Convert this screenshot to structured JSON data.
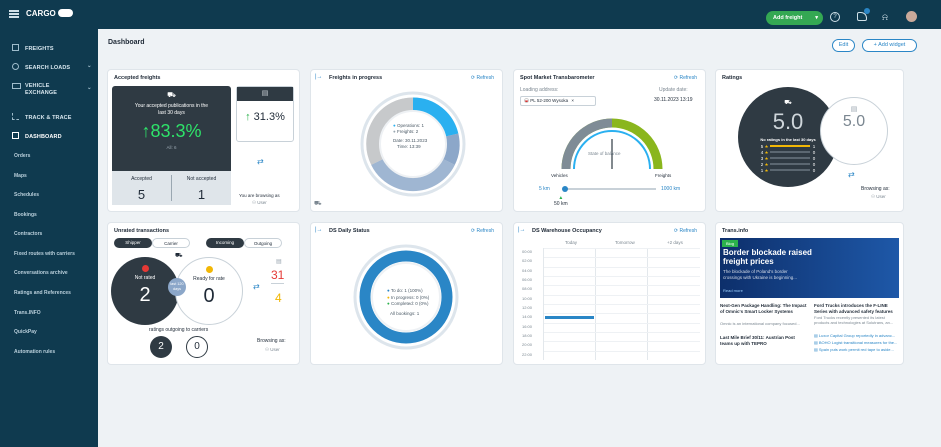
{
  "topbar": {
    "logo": "CARGO",
    "add_freight": "Add freight"
  },
  "sidebar": {
    "items": [
      "FREIGHTS",
      "SEARCH LOADS",
      "VEHICLE EXCHANGE",
      "TRACK & TRACE",
      "DASHBOARD"
    ],
    "vehicle_line1": "VEHICLE",
    "vehicle_line2": "EXCHANGE",
    "subitems": [
      "Orders",
      "Maps",
      "Schedules",
      "Bookings",
      "Contractors",
      "Fixed routes with carriers",
      "Conversations archive",
      "Ratings and References",
      "Trans.INFO",
      "QuickPay",
      "Automation rules"
    ]
  },
  "header": {
    "title": "Dashboard",
    "edit": "Edit",
    "add_widget": "Add widget"
  },
  "accepted": {
    "title": "Accepted freights",
    "desc1": "Your accepted publications in the",
    "desc2": "last 30 days",
    "percent": "83.3%",
    "all": "All: 6",
    "accepted_label": "Accepted",
    "not_accepted_label": "Not accepted",
    "accepted_val": "5",
    "not_accepted_val": "1",
    "side_percent": "31.3%",
    "browsing": "You are browsing as",
    "user": "User"
  },
  "progress": {
    "title": "Freights in progress",
    "refresh": "Refresh",
    "ops": "Operations: 1",
    "freights": "Freights: 2",
    "date": "Date: 30.11.2023",
    "time": "Time: 13:39"
  },
  "spot": {
    "title": "Spot Market Transbarometer",
    "refresh": "Refresh",
    "loading": "Loading address:",
    "update": "Update date:",
    "address": "PL 52-200 Wysoka",
    "date": "30.11.2023 13:19",
    "state": "State of balance",
    "vehicles": "Vehicles",
    "freights": "Freights",
    "min": "5 km",
    "max": "1000 km",
    "val": "50 km"
  },
  "ratings": {
    "title": "Ratings",
    "big": "5.0",
    "small": "5.0",
    "no_ratings": "No ratings in the last 30 days",
    "rows": [
      {
        "s": "5",
        "c": "1"
      },
      {
        "s": "4",
        "c": "0"
      },
      {
        "s": "3",
        "c": "0"
      },
      {
        "s": "2",
        "c": "0"
      },
      {
        "s": "1",
        "c": "0"
      }
    ],
    "browsing": "Browsing as:",
    "user": "User"
  },
  "unrated": {
    "title": "Unrated transactions",
    "shipper": "Shipper",
    "carrier": "Carrier",
    "incoming": "Incoming",
    "outgoing": "Outgoing",
    "not_rated": "Not rated",
    "not_rated_val": "2",
    "ready": "Ready for rate",
    "ready_val": "0",
    "last": "last 120 days",
    "cal_a": "31",
    "cal_b": "4",
    "outgoing_text": "ratings outgoing to carriers",
    "c1": "2",
    "c2": "0",
    "browsing": "Browsing as:",
    "user": "User"
  },
  "daily": {
    "title": "DS Daily Status",
    "refresh": "Refresh",
    "todo": "To do: 1 (100%)",
    "inprog": "In progress: 0 (0%)",
    "completed": "Completed: 0 (0%)",
    "all": "All bookings: 1"
  },
  "occupancy": {
    "title": "DS Warehouse Occupancy",
    "refresh": "Refresh",
    "cols": [
      "Today",
      "Tomorrow",
      "+2 days"
    ],
    "hours": [
      "00:00",
      "02:00",
      "04:00",
      "06:00",
      "08:00",
      "10:00",
      "12:00",
      "14:00",
      "16:00",
      "18:00",
      "20:00",
      "22:00"
    ]
  },
  "transinfo": {
    "title": "Trans.info",
    "badge": "Blog",
    "headline1": "Border blockade raised",
    "headline2": "freight prices",
    "sub1": "The blockade of Poland's border",
    "sub2": "crossings with Ukraine is beginning...",
    "read": "Read more",
    "n1t": "Next-Gen Package Handling: The Impact of Omnic's Smart Locker Systems",
    "n1d": "Omnic is an international company focused...",
    "n2t": "Ford Trucks introduces the F-LINE Series with advanced safety features",
    "n2d": "Ford Trucks recently presented its latest products and technologies at Solutrans, an...",
    "n3t": "Last Mile Brief 30/11: Austrian Post teams up with TEPRO",
    "links": [
      "Luxor Capital Group reportedly in advanc...",
      "BOHO Logist transitional measures for the...",
      "Spain puts work permit red tape to aside..."
    ]
  }
}
